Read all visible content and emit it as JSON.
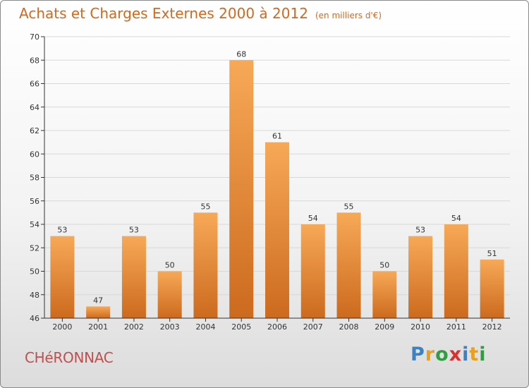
{
  "title": {
    "main": "Achats et Charges Externes 2000 à 2012",
    "unit": "(en milliers d'€)"
  },
  "town": "CHéRONNAC",
  "logo": {
    "text": "Proxiti",
    "letters": [
      {
        "char": "P",
        "color": "#3b82c4"
      },
      {
        "char": "r",
        "color": "#e8a020"
      },
      {
        "char": "o",
        "color": "#2e9e3e"
      },
      {
        "char": "x",
        "color": "#d93030"
      },
      {
        "char": "i",
        "color": "#3b82c4"
      },
      {
        "char": "t",
        "color": "#e8a020"
      },
      {
        "char": "i",
        "color": "#2e9e3e"
      }
    ]
  },
  "chart_data": {
    "type": "bar",
    "categories": [
      "2000",
      "2001",
      "2002",
      "2003",
      "2004",
      "2005",
      "2006",
      "2007",
      "2008",
      "2009",
      "2010",
      "2011",
      "2012"
    ],
    "values": [
      53,
      47,
      53,
      50,
      55,
      68,
      61,
      54,
      55,
      50,
      53,
      54,
      51
    ],
    "title": "Achats et Charges Externes 2000 à 2012",
    "xlabel": "",
    "ylabel": "",
    "ylim": [
      46,
      70
    ],
    "yticks": [
      46,
      48,
      50,
      52,
      54,
      56,
      58,
      60,
      62,
      64,
      66,
      68,
      70
    ],
    "grid": true,
    "colors": {
      "bar_light": "#f7a957",
      "bar_dark": "#cc6a1e",
      "grid": "#d8d8d8",
      "axis": "#333333"
    }
  }
}
